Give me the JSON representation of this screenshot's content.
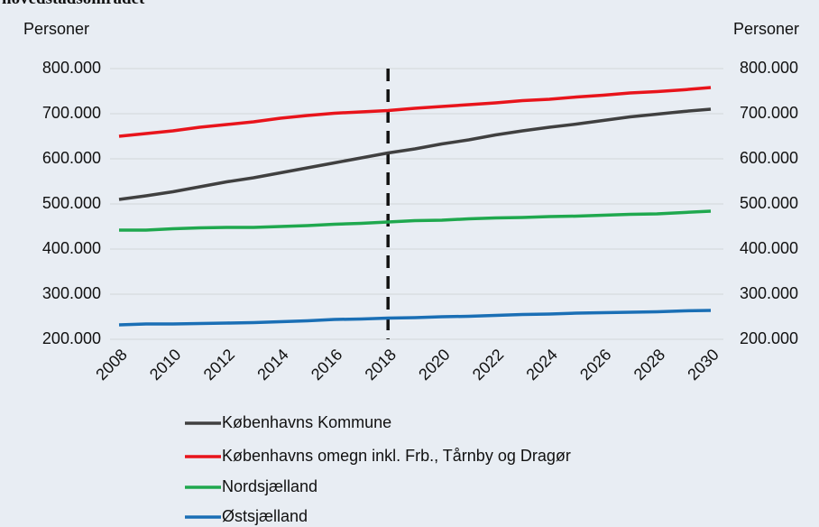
{
  "chart_data": {
    "type": "line",
    "title": "hovedstadsområdet",
    "ylabel_left": "Personer",
    "ylabel_right": "Personer",
    "x": [
      2008,
      2009,
      2010,
      2011,
      2012,
      2013,
      2014,
      2015,
      2016,
      2017,
      2018,
      2019,
      2020,
      2021,
      2022,
      2023,
      2024,
      2025,
      2026,
      2027,
      2028,
      2029,
      2030
    ],
    "xlim": [
      2008,
      2030
    ],
    "xticks": [
      2008,
      2010,
      2012,
      2014,
      2016,
      2018,
      2020,
      2022,
      2024,
      2026,
      2028,
      2030
    ],
    "ylim": [
      200000,
      800000
    ],
    "yticks": [
      {
        "value": 200000,
        "label": "200.000"
      },
      {
        "value": 300000,
        "label": "300.000"
      },
      {
        "value": 400000,
        "label": "400.000"
      },
      {
        "value": 500000,
        "label": "500.000"
      },
      {
        "value": 600000,
        "label": "600.000"
      },
      {
        "value": 700000,
        "label": "700.000"
      },
      {
        "value": 800000,
        "label": "800.000"
      }
    ],
    "grid": true,
    "vline_x": 2018,
    "series": [
      {
        "name": "Københavns Kommune",
        "color": "#404040",
        "values": [
          510000,
          518000,
          527000,
          538000,
          549000,
          558000,
          569000,
          580000,
          591000,
          602000,
          613000,
          622000,
          633000,
          642000,
          653000,
          662000,
          670000,
          677000,
          685000,
          693000,
          699000,
          705000,
          710000
        ]
      },
      {
        "name": "Københavns omegn inkl. Frb., Tårnby og Dragør",
        "color": "#e8141b",
        "values": [
          650000,
          656000,
          662000,
          670000,
          676000,
          682000,
          690000,
          696000,
          701000,
          704000,
          707000,
          712000,
          716000,
          720000,
          724000,
          729000,
          732000,
          737000,
          741000,
          746000,
          749000,
          753000,
          758000
        ]
      },
      {
        "name": "Nordsjælland",
        "color": "#1fa84e",
        "values": [
          442000,
          442000,
          445000,
          447000,
          448000,
          448000,
          450000,
          452000,
          455000,
          457000,
          460000,
          463000,
          464000,
          467000,
          469000,
          470000,
          472000,
          473000,
          475000,
          477000,
          478000,
          481000,
          484000
        ]
      },
      {
        "name": "Østsjælland",
        "color": "#1a6fb5",
        "values": [
          232000,
          234000,
          234000,
          235000,
          236000,
          237000,
          239000,
          241000,
          244000,
          245000,
          247000,
          248000,
          250000,
          251000,
          253000,
          255000,
          256000,
          258000,
          259000,
          260000,
          261000,
          263000,
          264000
        ]
      }
    ]
  }
}
